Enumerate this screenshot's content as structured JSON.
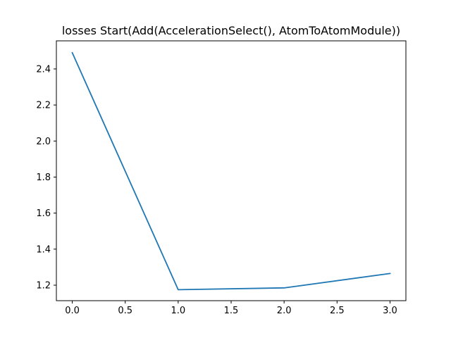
{
  "chart_data": {
    "type": "line",
    "title": "losses Start(Add(AccelerationSelect(), AtomToAtomModule))",
    "xlabel": "",
    "ylabel": "",
    "x": [
      0,
      1,
      2,
      3
    ],
    "series": [
      {
        "values": [
          2.49,
          1.175,
          1.185,
          1.265
        ],
        "color": "#1f77b4"
      }
    ],
    "xlim": [
      -0.15,
      3.15
    ],
    "ylim": [
      1.114,
      2.556
    ],
    "xticks": [
      0.0,
      0.5,
      1.0,
      1.5,
      2.0,
      2.5,
      3.0
    ],
    "xtick_labels": [
      "0.0",
      "0.5",
      "1.0",
      "1.5",
      "2.0",
      "2.5",
      "3.0"
    ],
    "yticks": [
      1.2,
      1.4,
      1.6,
      1.8,
      2.0,
      2.2,
      2.4
    ],
    "ytick_labels": [
      "1.2",
      "1.4",
      "1.6",
      "1.8",
      "2.0",
      "2.2",
      "2.4"
    ],
    "grid": false,
    "legend": "none"
  }
}
